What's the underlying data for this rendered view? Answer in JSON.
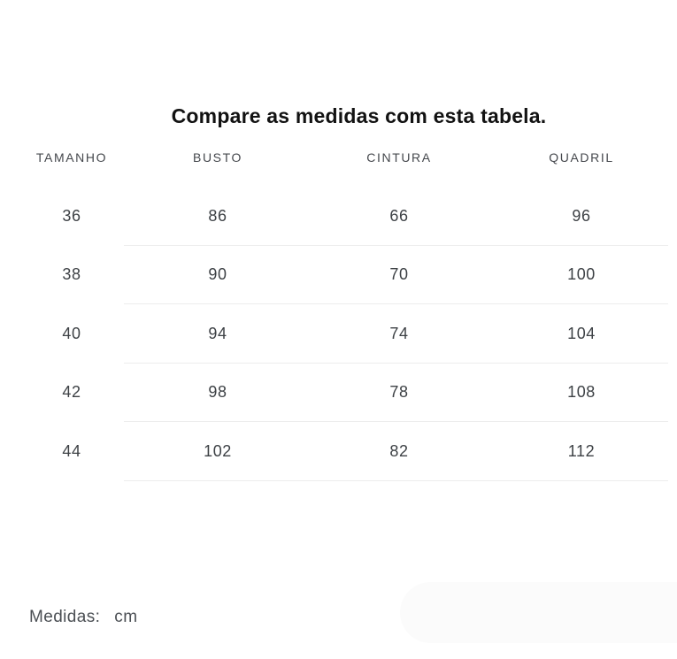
{
  "page": {
    "title": "Compare as medidas com esta tabela.",
    "footer": {
      "label": "Medidas:",
      "unit": "cm"
    }
  },
  "table": {
    "columns": [
      "TAMANHO",
      "BUSTO",
      "CINTURA",
      "QUADRIL"
    ],
    "rows": [
      [
        "36",
        "86",
        "66",
        "96"
      ],
      [
        "38",
        "90",
        "70",
        "100"
      ],
      [
        "40",
        "94",
        "74",
        "104"
      ],
      [
        "42",
        "98",
        "78",
        "108"
      ],
      [
        "44",
        "102",
        "82",
        "112"
      ]
    ]
  },
  "colors": {
    "background": "#ffffff",
    "title_text": "#121212",
    "header_text": "#45484d",
    "cell_text": "#3d4145",
    "divider": "#ededed",
    "footer_text": "#4b4f54",
    "bottom_pill": "#fbfbfb"
  }
}
